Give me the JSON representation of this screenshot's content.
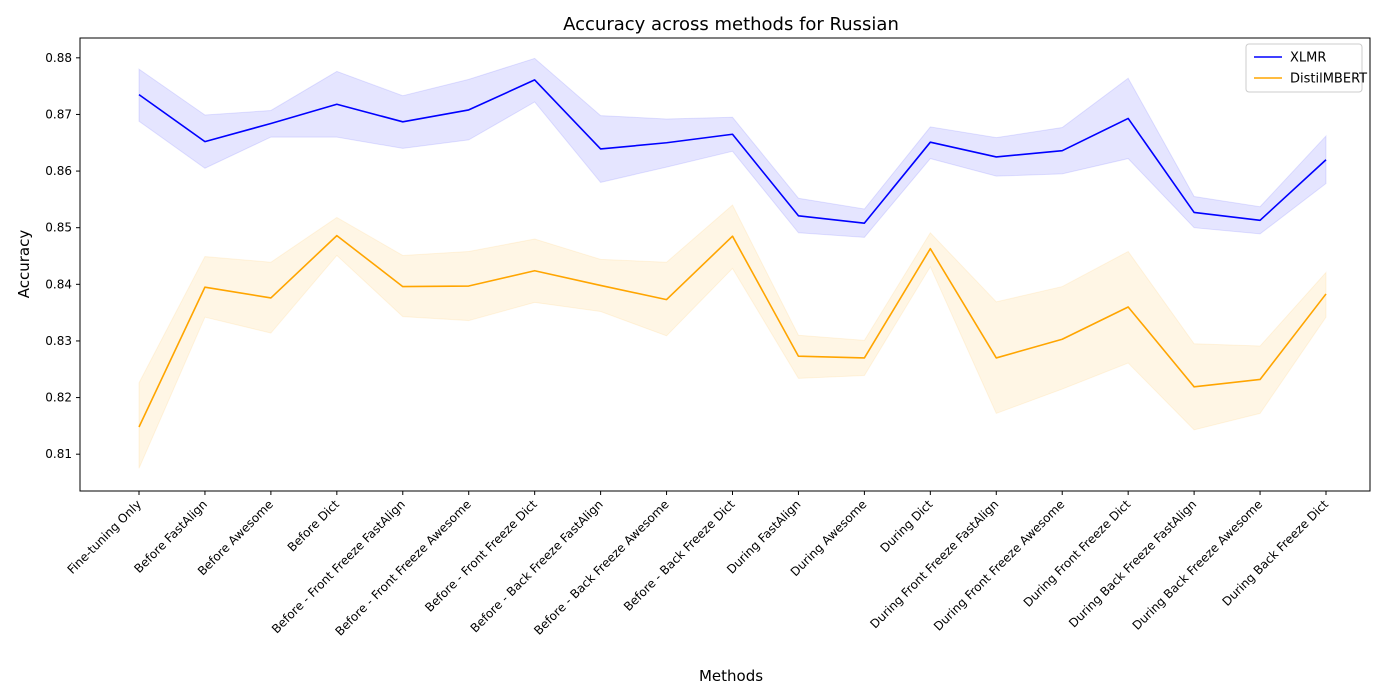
{
  "chart_data": {
    "type": "line",
    "title": "Accuracy across methods for Russian",
    "xlabel": "Methods",
    "ylabel": "Accuracy",
    "ylim": [
      0.8035,
      0.8835
    ],
    "yticks": [
      0.81,
      0.82,
      0.83,
      0.84,
      0.85,
      0.86,
      0.87,
      0.88
    ],
    "ytick_labels": [
      "0.81",
      "0.82",
      "0.83",
      "0.84",
      "0.85",
      "0.86",
      "0.87",
      "0.88"
    ],
    "grid": false,
    "legend_position": "top-right",
    "categories": [
      "Fine-tuning Only",
      "Before FastAlign",
      "Before Awesome",
      "Before Dict",
      "Before - Front Freeze FastAlign",
      "Before - Front Freeze Awesome",
      "Before - Front Freeze Dict",
      "Before - Back Freeze FastAlign",
      "Before - Back Freeze Awesome",
      "Before - Back Freeze Dict",
      "During FastAlign",
      "During Awesome",
      "During Dict",
      "During Front Freeze FastAlign",
      "During Front Freeze Awesome",
      "During Front Freeze Dict",
      "During Back Freeze FastAlign",
      "During Back Freeze Awesome",
      "During Back Freeze Dict"
    ],
    "series": [
      {
        "name": "XLMR",
        "color": "#0000ff",
        "values": [
          0.8735,
          0.8652,
          0.8684,
          0.8718,
          0.8687,
          0.8708,
          0.8761,
          0.8639,
          0.865,
          0.8665,
          0.8521,
          0.8508,
          0.8651,
          0.8625,
          0.8636,
          0.8693,
          0.8527,
          0.8513,
          0.862
        ],
        "lower": [
          0.8688,
          0.8605,
          0.866,
          0.866,
          0.864,
          0.8655,
          0.8722,
          0.858,
          0.8607,
          0.8635,
          0.8491,
          0.8483,
          0.8622,
          0.8591,
          0.8595,
          0.8622,
          0.85,
          0.8489,
          0.8578
        ],
        "upper": [
          0.878,
          0.8699,
          0.8707,
          0.8776,
          0.8733,
          0.8762,
          0.8799,
          0.8698,
          0.8692,
          0.8695,
          0.8552,
          0.8533,
          0.8678,
          0.8659,
          0.8677,
          0.8764,
          0.8555,
          0.8537,
          0.8662
        ]
      },
      {
        "name": "DistilMBERT",
        "color": "#ffa500",
        "values": [
          0.8148,
          0.8395,
          0.8376,
          0.8486,
          0.8396,
          0.8397,
          0.8424,
          0.8398,
          0.8373,
          0.8485,
          0.8273,
          0.827,
          0.8463,
          0.827,
          0.8303,
          0.836,
          0.8219,
          0.8232,
          0.8383
        ],
        "lower": [
          0.8075,
          0.8342,
          0.8314,
          0.8451,
          0.8343,
          0.8336,
          0.8368,
          0.8352,
          0.8309,
          0.8428,
          0.8234,
          0.8239,
          0.8431,
          0.8172,
          0.8215,
          0.8261,
          0.8143,
          0.8172,
          0.8342
        ],
        "upper": [
          0.8226,
          0.8449,
          0.8439,
          0.8518,
          0.8451,
          0.8458,
          0.848,
          0.8444,
          0.8439,
          0.854,
          0.831,
          0.8301,
          0.8491,
          0.8369,
          0.8396,
          0.8458,
          0.8295,
          0.8291,
          0.8421
        ]
      }
    ]
  }
}
